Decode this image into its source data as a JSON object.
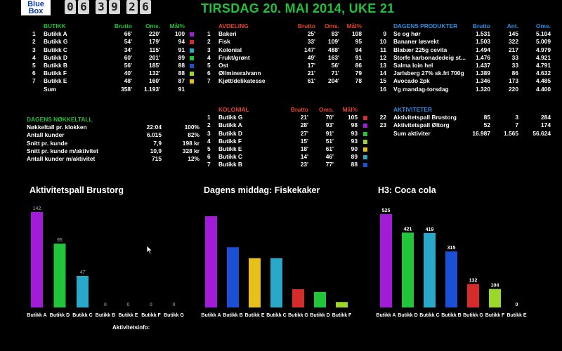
{
  "header": {
    "logo_line1": "Blue",
    "logo_line2": "Box",
    "clock_digits": [
      "0",
      "6",
      "3",
      "9",
      "2",
      "6"
    ],
    "title": "TIRSDAG 20. MAI 2014, UKE 21"
  },
  "butikk_table": {
    "headers": {
      "name": "BUTIKK",
      "brutto": "Brutto",
      "oms": "Oms.",
      "mal": "Mål%"
    },
    "rows": [
      {
        "nr": "1",
        "name": "Butikk A",
        "brutto": "66'",
        "oms": "220'",
        "mal": "100",
        "color": "#a21bd6"
      },
      {
        "nr": "2",
        "name": "Butikk G",
        "brutto": "54'",
        "oms": "179'",
        "mal": "94",
        "color": "#d62b2b"
      },
      {
        "nr": "3",
        "name": "Butikk C",
        "brutto": "34'",
        "oms": "115'",
        "mal": "91",
        "color": "#2aa8c9"
      },
      {
        "nr": "4",
        "name": "Butikk D",
        "brutto": "60'",
        "oms": "201'",
        "mal": "89",
        "color": "#22c43a"
      },
      {
        "nr": "5",
        "name": "Butikk B",
        "brutto": "56'",
        "oms": "185'",
        "mal": "88",
        "color": "#1b4fd6"
      },
      {
        "nr": "6",
        "name": "Butikk F",
        "brutto": "40'",
        "oms": "132'",
        "mal": "88",
        "color": "#9bd62b"
      },
      {
        "nr": "7",
        "name": "Butikk E",
        "brutto": "48'",
        "oms": "160'",
        "mal": "87",
        "color": "#e8c01c"
      }
    ],
    "sum": {
      "label": "Sum",
      "brutto": "358'",
      "oms": "1.193'",
      "mal": "91"
    }
  },
  "avdeling_table": {
    "headers": {
      "name": "AVDELING",
      "brutto": "Brutto",
      "oms": "Oms.",
      "mal": "Mål%"
    },
    "rows": [
      {
        "nr": "1",
        "name": "Bakeri",
        "brutto": "25'",
        "oms": "83'",
        "mal": "108"
      },
      {
        "nr": "2",
        "name": "Fisk",
        "brutto": "33'",
        "oms": "109'",
        "mal": "95"
      },
      {
        "nr": "3",
        "name": "Kolonial",
        "brutto": "147'",
        "oms": "488'",
        "mal": "94"
      },
      {
        "nr": "4",
        "name": "Frukt/grønt",
        "brutto": "49'",
        "oms": "163'",
        "mal": "91"
      },
      {
        "nr": "5",
        "name": "Ost",
        "brutto": "17'",
        "oms": "56'",
        "mal": "86"
      },
      {
        "nr": "6",
        "name": "Øl/mineralvann",
        "brutto": "21'",
        "oms": "71'",
        "mal": "79"
      },
      {
        "nr": "7",
        "name": "Kjøtt/delikatesse",
        "brutto": "61'",
        "oms": "204'",
        "mal": "78"
      }
    ]
  },
  "kolonial_table": {
    "headers": {
      "name": "KOLONIAL",
      "brutto": "Brutto",
      "oms": "Oms.",
      "mal": "Mål%"
    },
    "rows": [
      {
        "nr": "1",
        "name": "Butikk G",
        "brutto": "21'",
        "oms": "70'",
        "mal": "105",
        "color": "#d62b2b"
      },
      {
        "nr": "2",
        "name": "Butikk A",
        "brutto": "28'",
        "oms": "93'",
        "mal": "98",
        "color": "#a21bd6"
      },
      {
        "nr": "3",
        "name": "Butikk D",
        "brutto": "27'",
        "oms": "91'",
        "mal": "93",
        "color": "#22c43a"
      },
      {
        "nr": "4",
        "name": "Butikk F",
        "brutto": "15'",
        "oms": "51'",
        "mal": "93",
        "color": "#9bd62b"
      },
      {
        "nr": "5",
        "name": "Butikk E",
        "brutto": "18'",
        "oms": "61'",
        "mal": "90",
        "color": "#e8c01c"
      },
      {
        "nr": "6",
        "name": "Butikk C",
        "brutto": "14'",
        "oms": "46'",
        "mal": "89",
        "color": "#2aa8c9"
      },
      {
        "nr": "7",
        "name": "Butikk B",
        "brutto": "23'",
        "oms": "77'",
        "mal": "88",
        "color": "#1b4fd6"
      }
    ]
  },
  "produkter_table": {
    "headers": {
      "name": "DAGENS PRODUKTER",
      "brutto": "Brutto",
      "ant": "Ant.",
      "oms": "Oms."
    },
    "rows": [
      {
        "nr": "9",
        "name": "Se og hør",
        "brutto": "1.531",
        "ant": "145",
        "oms": "5.104"
      },
      {
        "nr": "10",
        "name": "Bananer løsvekt",
        "brutto": "1.503",
        "ant": "322",
        "oms": "5.009"
      },
      {
        "nr": "11",
        "name": "Blabær 225g cevita",
        "brutto": "1.494",
        "ant": "217",
        "oms": "4.979"
      },
      {
        "nr": "12",
        "name": "Storfe karbonadedeig st...",
        "brutto": "1.476",
        "ant": "33",
        "oms": "4.921"
      },
      {
        "nr": "13",
        "name": "Salma loin hel",
        "brutto": "1.437",
        "ant": "33",
        "oms": "4.791"
      },
      {
        "nr": "14",
        "name": "Jarlsberg 27% sk.fri 700g",
        "brutto": "1.389",
        "ant": "86",
        "oms": "4.632"
      },
      {
        "nr": "15",
        "name": "Avocado 2pk",
        "brutto": "1.346",
        "ant": "173",
        "oms": "4.485"
      },
      {
        "nr": "16",
        "name": "Vg mandag-torsdag",
        "brutto": "1.320",
        "ant": "220",
        "oms": "4.400"
      }
    ]
  },
  "aktiviteter_table": {
    "header": "AKTIVITETER",
    "rows": [
      {
        "nr": "22",
        "name": "Aktivitetspall Brustorg",
        "brutto": "85",
        "ant": "3",
        "oms": "284"
      },
      {
        "nr": "23",
        "name": "Aktivitetspall Øltorg",
        "brutto": "52",
        "ant": "7",
        "oms": "174"
      }
    ],
    "sum": {
      "label": "Sum aktiviter",
      "brutto": "16.987",
      "ant": "1.565",
      "oms": "56.624"
    }
  },
  "nokkeltall": {
    "header": "DAGENS NØKKELTALL",
    "rows": [
      {
        "label": "Nøkkeltall pr. klokken",
        "v1": "22:04",
        "v2": "100%"
      },
      {
        "label": "Antall kunder",
        "v1": "6.015",
        "v2": "82%"
      },
      {
        "label": "Snitt pr. kunde",
        "v1": "7,9",
        "v2": "198 kr"
      },
      {
        "label": "Snitt pr. kunde m/aktivitet",
        "v1": "10,9",
        "v2": "328 kr"
      },
      {
        "label": "Antall kunder m/aktivitet",
        "v1": "715",
        "v2": "12%"
      }
    ]
  },
  "footer": {
    "aktivitetsinfo": "Aktivitetsinfo:"
  },
  "chart_data": [
    {
      "type": "bar",
      "title": "Aktivitetspall Brustorg",
      "categories": [
        "Butikk A",
        "Butikk D",
        "Butikk C",
        "Butikk B",
        "Butikk E",
        "Butikk F",
        "Butikk G"
      ],
      "values": [
        142,
        95,
        47,
        0,
        0,
        0,
        0
      ],
      "colors": [
        "#a21bd6",
        "#22c43a",
        "#2aa8c9",
        "#1b4fd6",
        "#e8c01c",
        "#9bd62b",
        "#d62b2b"
      ],
      "show_value_labels": true,
      "value_label_color": "#7a7a7a"
    },
    {
      "type": "bar",
      "title": "Dagens middag: Fiskekaker",
      "categories": [
        "Butikk A",
        "Butikk B",
        "Butikk E",
        "Butikk C",
        "Butikk G",
        "Butikk D",
        "Butikk F"
      ],
      "values": [
        100,
        66,
        54,
        54,
        20,
        17,
        6
      ],
      "colors": [
        "#a21bd6",
        "#1b4fd6",
        "#e8c01c",
        "#2aa8c9",
        "#d62b2b",
        "#22c43a",
        "#9bd62b"
      ],
      "show_value_labels": false
    },
    {
      "type": "bar",
      "title": "H3: Coca cola",
      "categories": [
        "Butikk A",
        "Butikk D",
        "Butikk C",
        "Butikk B",
        "Butikk G",
        "Butikk F",
        "Butikk E"
      ],
      "values": [
        525,
        421,
        419,
        315,
        132,
        104,
        0
      ],
      "colors": [
        "#a21bd6",
        "#22c43a",
        "#2aa8c9",
        "#1b4fd6",
        "#d62b2b",
        "#9bd62b",
        "#e8c01c"
      ],
      "show_value_labels": true,
      "value_label_color": "#ffffff"
    }
  ]
}
